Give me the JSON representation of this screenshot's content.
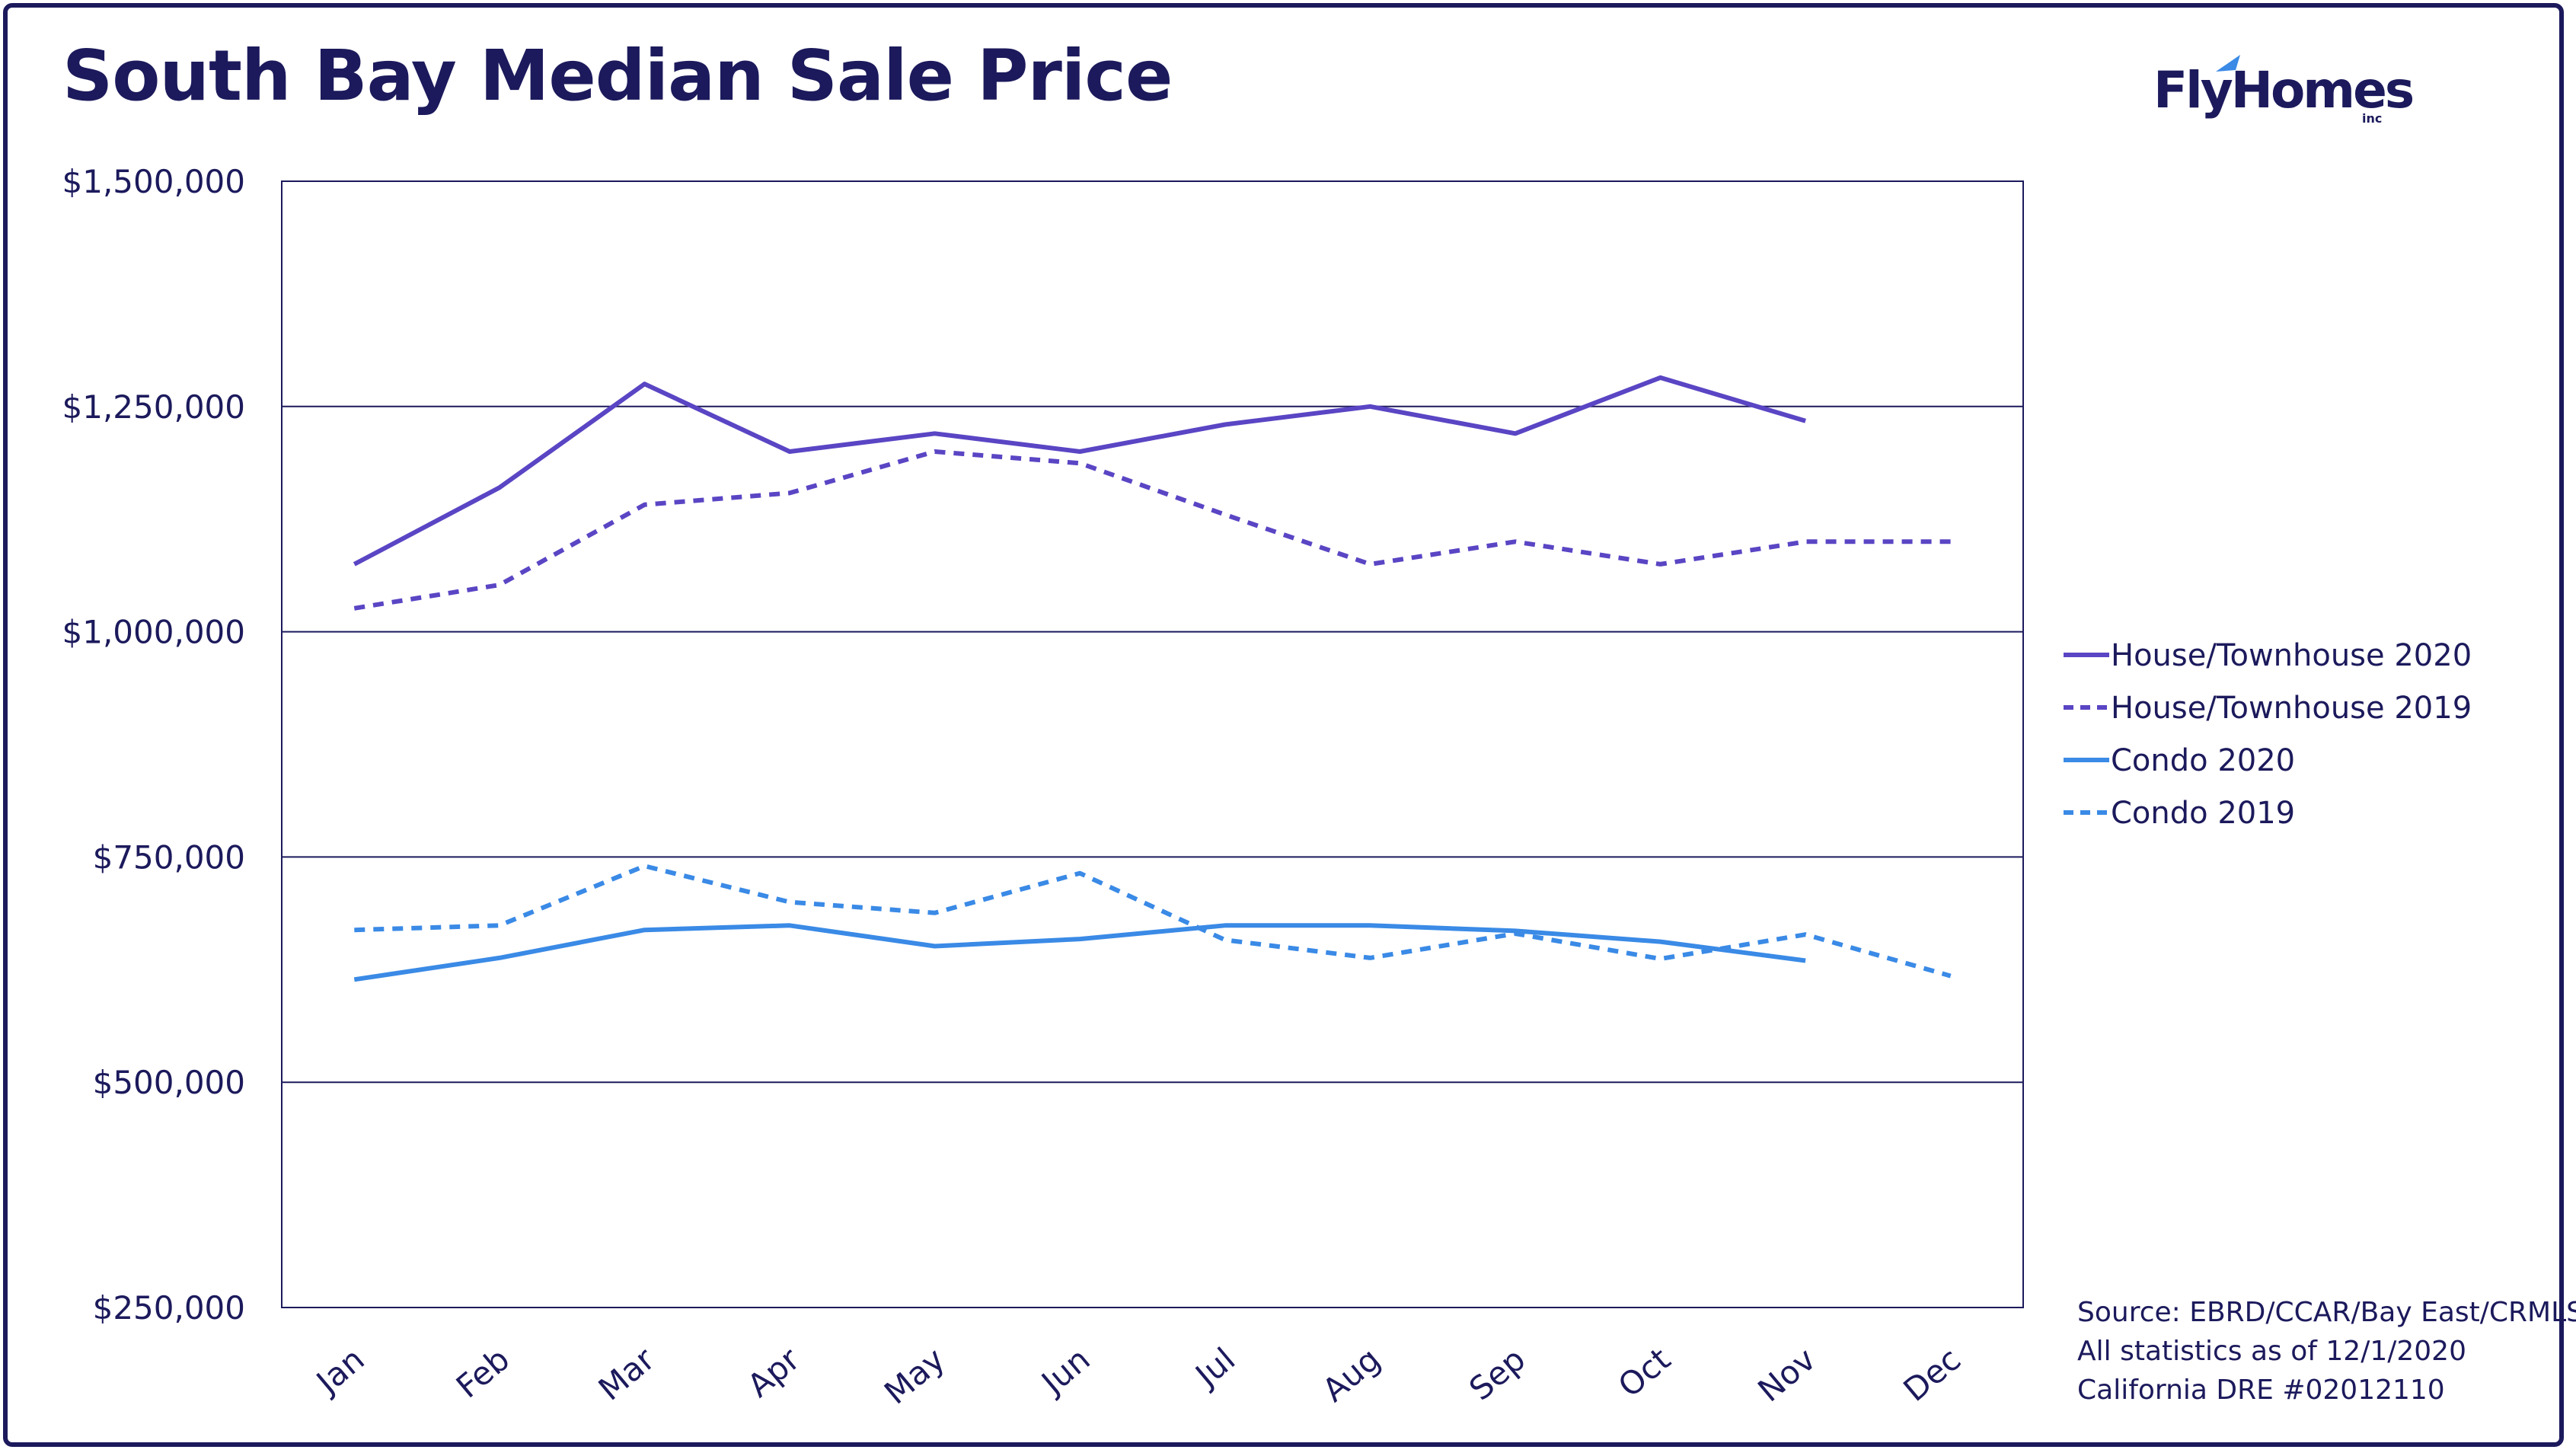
{
  "title": "South Bay Median Sale Price",
  "logo": {
    "text": "FlyHomes",
    "sub": "inc"
  },
  "source_lines": [
    "Source: EBRD/CCAR/Bay East/CRMLS",
    "All statistics as of 12/1/2020",
    "California DRE #02012110"
  ],
  "colors": {
    "purple": "#5a45c4",
    "blue": "#3a8ae6",
    "navy": "#1c1a5c"
  },
  "chart_data": {
    "type": "line",
    "title": "South Bay Median Sale Price",
    "xlabel": "",
    "ylabel": "",
    "categories": [
      "Jan",
      "Feb",
      "Mar",
      "Apr",
      "May",
      "Jun",
      "Jul",
      "Aug",
      "Sep",
      "Oct",
      "Nov",
      "Dec"
    ],
    "ylim": [
      250000,
      1500000
    ],
    "yticks": [
      250000,
      500000,
      750000,
      1000000,
      1250000,
      1500000
    ],
    "ytick_labels": [
      "$250,000",
      "$500,000",
      "$750,000",
      "$1,000,000",
      "$1,250,000",
      "$1,500,000"
    ],
    "grid": true,
    "legend_position": "right",
    "series": [
      {
        "name": "House/Townhouse 2020",
        "color": "#5a45c4",
        "dashed": false,
        "values": [
          1075000,
          1160000,
          1275000,
          1200000,
          1220000,
          1200000,
          1230000,
          1250000,
          1220000,
          1282000,
          1234000,
          null
        ]
      },
      {
        "name": "House/Townhouse 2019",
        "color": "#5a45c4",
        "dashed": true,
        "values": [
          1026000,
          1052000,
          1141000,
          1154000,
          1200000,
          1187000,
          1130000,
          1075000,
          1100000,
          1075000,
          1100000,
          1100000
        ]
      },
      {
        "name": "Condo 2020",
        "color": "#3a8ae6",
        "dashed": false,
        "values": [
          614000,
          638000,
          669000,
          674000,
          651000,
          659000,
          674000,
          674000,
          668000,
          656000,
          635000,
          null
        ]
      },
      {
        "name": "Condo 2019",
        "color": "#3a8ae6",
        "dashed": true,
        "values": [
          669000,
          674000,
          740000,
          700000,
          688000,
          732000,
          658000,
          638000,
          665000,
          637000,
          664000,
          618000
        ]
      }
    ]
  }
}
